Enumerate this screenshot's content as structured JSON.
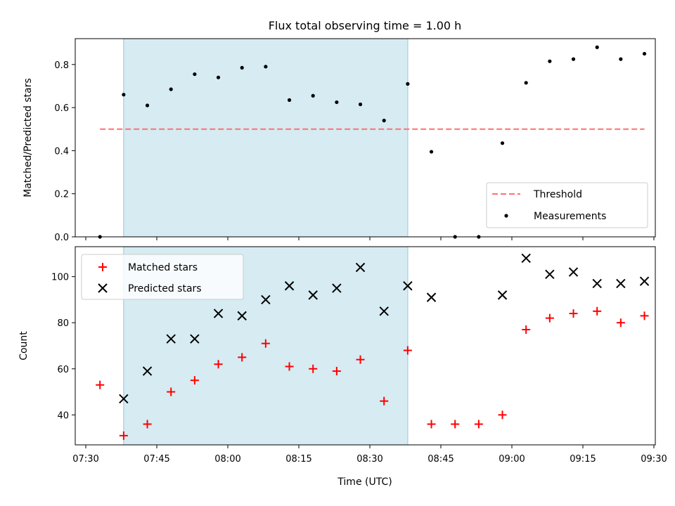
{
  "chart_data": {
    "type": "scatter",
    "title": "Flux total observing time = 1.00 h",
    "xlabel": "Time (UTC)",
    "x_ticks": [
      "07:30",
      "07:45",
      "08:00",
      "08:15",
      "08:30",
      "08:45",
      "09:00",
      "09:15",
      "09:30"
    ],
    "x_range_minutes": [
      "07:30",
      "09:30"
    ],
    "times": [
      "07:33",
      "07:38",
      "07:43",
      "07:48",
      "07:53",
      "07:58",
      "08:03",
      "08:08",
      "08:13",
      "08:18",
      "08:23",
      "08:28",
      "08:33",
      "08:38",
      "08:43",
      "08:48",
      "08:53",
      "08:58",
      "09:03",
      "09:08",
      "09:13",
      "09:18",
      "09:23",
      "09:28"
    ],
    "shaded_span": [
      "07:38",
      "08:38"
    ],
    "shade_color": "#add8e6",
    "top_panel": {
      "ylabel": "Matched/Predicted stars",
      "ylim": [
        0,
        0.92
      ],
      "y_ticks": [
        "0.0",
        "0.2",
        "0.4",
        "0.6",
        "0.8"
      ],
      "threshold": {
        "name": "Threshold",
        "value": 0.5,
        "x_range": [
          "07:33",
          "09:28"
        ],
        "color": "#ff7070",
        "style": "dashed"
      },
      "measurements": {
        "name": "Measurements",
        "color": "#000000",
        "values": [
          0.0,
          0.66,
          0.61,
          0.685,
          0.755,
          0.74,
          0.785,
          0.79,
          0.635,
          0.655,
          0.625,
          0.615,
          0.54,
          0.71,
          0.395,
          0.0,
          0.0,
          0.435,
          0.715,
          0.815,
          0.825,
          0.88,
          0.825,
          0.85
        ]
      },
      "legend_position": "lower-right"
    },
    "bottom_panel": {
      "ylabel": "Count",
      "ylim": [
        27,
        113
      ],
      "y_ticks": [
        "40",
        "60",
        "80",
        "100"
      ],
      "series": [
        {
          "name": "Matched stars",
          "marker": "+",
          "color": "#ff0000",
          "values": [
            53,
            31,
            36,
            50,
            55,
            62,
            65,
            71,
            61,
            60,
            59,
            64,
            46,
            68,
            36,
            36,
            36,
            40,
            77,
            82,
            84,
            85,
            80,
            83
          ]
        },
        {
          "name": "Predicted stars",
          "marker": "x",
          "color": "#000000",
          "values": [
            null,
            47,
            59,
            73,
            73,
            84,
            83,
            90,
            96,
            92,
            95,
            104,
            85,
            96,
            91,
            null,
            null,
            92,
            108,
            101,
            102,
            97,
            97,
            98
          ]
        }
      ],
      "legend_position": "upper-left"
    }
  }
}
